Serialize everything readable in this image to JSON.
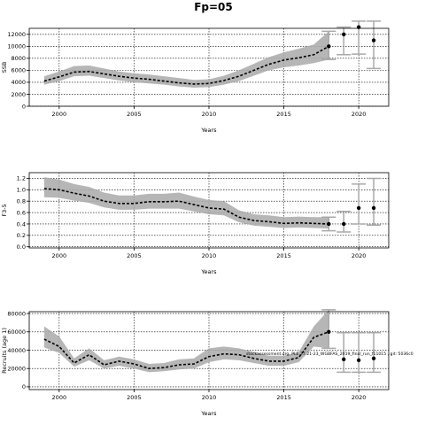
{
  "figure": {
    "title": "Fp=05",
    "source_note": "stockassessment.org, PLE.27.21-23_WGBFAS_2019_final_run_f11015 , git: 5036c0"
  },
  "chart_data": [
    {
      "type": "line",
      "ylabel": "SSB",
      "xlabel": "Years",
      "xlim": [
        1998,
        2022
      ],
      "ylim": [
        0,
        13000
      ],
      "xticks": [
        2000,
        2005,
        2010,
        2015,
        2020
      ],
      "yticks": [
        0,
        2000,
        4000,
        6000,
        8000,
        10000,
        12000
      ],
      "grid": true,
      "x": [
        1999,
        2000,
        2001,
        2002,
        2003,
        2004,
        2005,
        2006,
        2007,
        2008,
        2009,
        2010,
        2011,
        2012,
        2013,
        2014,
        2015,
        2016,
        2017,
        2018
      ],
      "estimate": [
        4200,
        4900,
        5700,
        5800,
        5400,
        5000,
        4700,
        4500,
        4200,
        3900,
        3700,
        3800,
        4300,
        5000,
        6000,
        7000,
        7700,
        8100,
        8600,
        10000
      ],
      "ci_lower": [
        3600,
        4200,
        5000,
        5100,
        4700,
        4300,
        4000,
        3800,
        3600,
        3300,
        3100,
        3200,
        3600,
        4200,
        5100,
        6000,
        6500,
        6800,
        7200,
        7800
      ],
      "ci_upper": [
        5000,
        5800,
        6700,
        6800,
        6300,
        5800,
        5500,
        5300,
        5000,
        4700,
        4400,
        4500,
        5100,
        6000,
        7100,
        8200,
        9000,
        9600,
        10300,
        12500
      ],
      "forecast": [
        {
          "x": 2018,
          "value": 10000,
          "lower": 7800,
          "upper": 12500
        },
        {
          "x": 2019,
          "value": 12000,
          "lower": 8600,
          "upper": 13200
        },
        {
          "x": 2020,
          "value": 13200,
          "lower": 8700,
          "upper": 14200
        },
        {
          "x": 2021,
          "value": 11000,
          "lower": 6300,
          "upper": 14200
        }
      ]
    },
    {
      "type": "line",
      "ylabel": "F3-5",
      "xlabel": "Years",
      "xlim": [
        1998,
        2022
      ],
      "ylim": [
        -0.02,
        1.3
      ],
      "xticks": [
        2000,
        2005,
        2010,
        2015,
        2020
      ],
      "yticks": [
        0.0,
        0.2,
        0.4,
        0.6,
        0.8,
        1.0,
        1.2
      ],
      "grid": true,
      "x": [
        1999,
        2000,
        2001,
        2002,
        2003,
        2004,
        2005,
        2006,
        2007,
        2008,
        2009,
        2010,
        2011,
        2012,
        2013,
        2014,
        2015,
        2016,
        2017,
        2018
      ],
      "estimate": [
        1.02,
        1.0,
        0.94,
        0.89,
        0.8,
        0.76,
        0.76,
        0.79,
        0.79,
        0.8,
        0.74,
        0.68,
        0.66,
        0.52,
        0.46,
        0.44,
        0.41,
        0.42,
        0.41,
        0.4
      ],
      "ci_lower": [
        0.87,
        0.86,
        0.81,
        0.77,
        0.69,
        0.65,
        0.65,
        0.67,
        0.67,
        0.67,
        0.62,
        0.57,
        0.55,
        0.43,
        0.37,
        0.35,
        0.33,
        0.34,
        0.33,
        0.32
      ],
      "ci_upper": [
        1.22,
        1.18,
        1.1,
        1.05,
        0.95,
        0.9,
        0.9,
        0.93,
        0.93,
        0.95,
        0.88,
        0.82,
        0.8,
        0.64,
        0.57,
        0.55,
        0.52,
        0.53,
        0.52,
        0.52
      ],
      "forecast": [
        {
          "x": 2018,
          "value": 0.4,
          "lower": 0.28,
          "upper": 0.52
        },
        {
          "x": 2019,
          "value": 0.4,
          "lower": 0.26,
          "upper": 0.62
        },
        {
          "x": 2020,
          "value": 0.68,
          "lower": 0.4,
          "upper": 1.1
        },
        {
          "x": 2021,
          "value": 0.68,
          "lower": 0.38,
          "upper": 1.2
        }
      ]
    },
    {
      "type": "line",
      "ylabel": "Recruits (age 1)",
      "xlabel": "Years",
      "xlim": [
        1998,
        2022
      ],
      "ylim": [
        -3000,
        82000
      ],
      "xticks": [
        2000,
        2005,
        2010,
        2015,
        2020
      ],
      "yticks": [
        0,
        20000,
        40000,
        60000,
        80000
      ],
      "grid": true,
      "x": [
        1999,
        2000,
        2001,
        2002,
        2003,
        2004,
        2005,
        2006,
        2007,
        2008,
        2009,
        2010,
        2011,
        2012,
        2013,
        2014,
        2015,
        2016,
        2017,
        2018
      ],
      "estimate": [
        52000,
        44000,
        26000,
        35000,
        24000,
        28000,
        25000,
        20000,
        21000,
        24000,
        25000,
        33000,
        36000,
        35000,
        31000,
        28000,
        28000,
        32000,
        54000,
        60000
      ],
      "ci_lower": [
        43000,
        37000,
        22000,
        29000,
        20000,
        23000,
        20000,
        16000,
        17000,
        19000,
        20000,
        27000,
        30000,
        29000,
        26000,
        23000,
        23000,
        27000,
        44000,
        42000
      ],
      "ci_upper": [
        66000,
        55000,
        31000,
        42000,
        29000,
        33000,
        30000,
        25000,
        26000,
        30000,
        31000,
        42000,
        44000,
        42000,
        38000,
        34000,
        34000,
        38000,
        66000,
        84000
      ],
      "forecast": [
        {
          "x": 2018,
          "value": 60000,
          "lower": 42000,
          "upper": 84000
        },
        {
          "x": 2019,
          "value": 30000,
          "lower": 16000,
          "upper": 59000
        },
        {
          "x": 2020,
          "value": 29000,
          "lower": 16000,
          "upper": 59000
        },
        {
          "x": 2021,
          "value": 31000,
          "lower": 16000,
          "upper": 59000
        }
      ]
    }
  ]
}
